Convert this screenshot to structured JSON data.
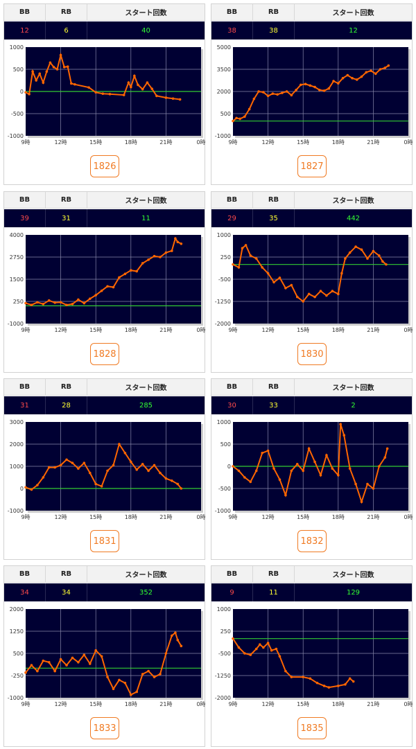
{
  "headers": {
    "bb": "BB",
    "rb": "RB",
    "start": "スタート回数"
  },
  "colors": {
    "bb": "#ff4a4a",
    "rb": "#ffff33",
    "start": "#33ff33",
    "line": "#ff6600",
    "baseline": "#33cc33",
    "plot_bg": "#000033",
    "button": "#f07a22"
  },
  "machines": [
    {
      "label": "1826",
      "bb": "12",
      "rb": "6",
      "start": "40"
    },
    {
      "label": "1827",
      "bb": "38",
      "rb": "38",
      "start": "12"
    },
    {
      "label": "1828",
      "bb": "39",
      "rb": "31",
      "start": "11"
    },
    {
      "label": "1830",
      "bb": "29",
      "rb": "35",
      "start": "442"
    },
    {
      "label": "1831",
      "bb": "31",
      "rb": "28",
      "start": "285"
    },
    {
      "label": "1832",
      "bb": "30",
      "rb": "33",
      "start": "2"
    },
    {
      "label": "1833",
      "bb": "34",
      "rb": "34",
      "start": "352"
    },
    {
      "label": "1835",
      "bb": "9",
      "rb": "11",
      "start": "129"
    }
  ],
  "chart_data": [
    {
      "type": "line",
      "x_ticks": [
        "9時",
        "12時",
        "15時",
        "18時",
        "21時",
        "0時"
      ],
      "xlim": [
        9,
        24
      ],
      "y_ticks": [
        "1000",
        "500",
        "0",
        "-500",
        "-1000"
      ],
      "ylim": [
        -1000,
        1000
      ],
      "baseline": 0,
      "x": [
        9.0,
        9.3,
        9.6,
        9.9,
        10.2,
        10.5,
        10.8,
        11.1,
        11.4,
        11.7,
        12.0,
        12.3,
        12.6,
        12.9,
        13.2,
        14.4,
        15.0,
        15.6,
        16.2,
        17.4,
        17.8,
        18.0,
        18.3,
        18.6,
        19.0,
        19.4,
        19.8,
        20.2,
        21.0,
        21.6,
        22.2
      ],
      "y": [
        -20,
        -60,
        450,
        250,
        400,
        200,
        450,
        650,
        550,
        500,
        820,
        550,
        560,
        180,
        160,
        90,
        -20,
        -50,
        -60,
        -80,
        200,
        100,
        350,
        150,
        50,
        200,
        60,
        -100,
        -140,
        -160,
        -180
      ]
    },
    {
      "type": "line",
      "x_ticks": [
        "9時",
        "12時",
        "15時",
        "18時",
        "21時",
        "0時"
      ],
      "xlim": [
        9,
        24
      ],
      "y_ticks": [
        "5000",
        "3500",
        "2000",
        "500",
        "-1000"
      ],
      "ylim": [
        -1000,
        5000
      ],
      "baseline": 0,
      "x": [
        9.0,
        9.3,
        9.6,
        10.0,
        10.4,
        10.8,
        11.2,
        11.6,
        12.0,
        12.4,
        12.8,
        13.2,
        13.6,
        14.0,
        14.4,
        14.8,
        15.2,
        15.6,
        16.0,
        16.4,
        16.8,
        17.2,
        17.6,
        18.0,
        18.4,
        18.8,
        19.2,
        19.6,
        20.0,
        20.4,
        20.8,
        21.2,
        21.6,
        22.0,
        22.3
      ],
      "y": [
        0,
        200,
        150,
        300,
        800,
        1500,
        2000,
        1950,
        1700,
        1850,
        1800,
        1900,
        2000,
        1750,
        2100,
        2450,
        2500,
        2400,
        2300,
        2100,
        2050,
        2200,
        2700,
        2550,
        2900,
        3100,
        2900,
        2800,
        3000,
        3300,
        3400,
        3200,
        3500,
        3600,
        3750
      ]
    },
    {
      "type": "line",
      "x_ticks": [
        "9時",
        "12時",
        "15時",
        "18時",
        "21時",
        "0時"
      ],
      "xlim": [
        9,
        24
      ],
      "y_ticks": [
        "4000",
        "2750",
        "1500",
        "250",
        "-1000"
      ],
      "ylim": [
        -1000,
        4000
      ],
      "baseline": 0,
      "x": [
        9.0,
        9.5,
        10.0,
        10.5,
        11.0,
        11.5,
        12.0,
        12.5,
        13.0,
        13.5,
        14.0,
        14.5,
        15.0,
        15.5,
        16.0,
        16.5,
        17.0,
        17.5,
        18.0,
        18.5,
        19.0,
        19.5,
        20.0,
        20.5,
        21.0,
        21.5,
        21.8,
        22.0,
        22.3
      ],
      "y": [
        150,
        50,
        200,
        100,
        300,
        180,
        200,
        50,
        100,
        350,
        150,
        400,
        600,
        850,
        1100,
        1050,
        1600,
        1800,
        2000,
        1950,
        2400,
        2600,
        2800,
        2750,
        3000,
        3100,
        3800,
        3600,
        3500
      ]
    },
    {
      "type": "line",
      "x_ticks": [
        "9時",
        "12時",
        "15時",
        "18時",
        "21時",
        "0時"
      ],
      "xlim": [
        9,
        24
      ],
      "y_ticks": [
        "1000",
        "250",
        "-500",
        "-1250",
        "-2000"
      ],
      "ylim": [
        -2000,
        1000
      ],
      "baseline": 0,
      "x": [
        9.0,
        9.5,
        9.8,
        10.1,
        10.5,
        11.0,
        11.5,
        12.0,
        12.5,
        13.0,
        13.5,
        14.0,
        14.5,
        15.0,
        15.5,
        16.0,
        16.5,
        17.0,
        17.5,
        18.0,
        18.3,
        18.6,
        19.0,
        19.5,
        20.0,
        20.5,
        21.0,
        21.5,
        21.8,
        22.1
      ],
      "y": [
        0,
        -100,
        550,
        650,
        300,
        200,
        -100,
        -300,
        -600,
        -450,
        -800,
        -700,
        -1100,
        -1250,
        -1000,
        -1100,
        -900,
        -1050,
        -900,
        -1000,
        -300,
        200,
        400,
        600,
        500,
        200,
        450,
        300,
        100,
        0
      ]
    },
    {
      "type": "line",
      "x_ticks": [
        "9時",
        "12時",
        "15時",
        "18時",
        "21時",
        "0時"
      ],
      "xlim": [
        9,
        24
      ],
      "y_ticks": [
        "3000",
        "2000",
        "1000",
        "0",
        "-1000"
      ],
      "ylim": [
        -1000,
        3000
      ],
      "baseline": 0,
      "x": [
        9.0,
        9.5,
        10.0,
        10.5,
        11.0,
        11.5,
        12.0,
        12.5,
        13.0,
        13.5,
        14.0,
        14.5,
        15.0,
        15.5,
        16.0,
        16.5,
        17.0,
        17.5,
        18.0,
        18.5,
        19.0,
        19.5,
        20.0,
        20.5,
        21.0,
        21.5,
        22.0,
        22.3
      ],
      "y": [
        50,
        -50,
        150,
        500,
        950,
        950,
        1050,
        1300,
        1150,
        900,
        1150,
        700,
        200,
        100,
        800,
        1050,
        2000,
        1600,
        1200,
        850,
        1100,
        800,
        1050,
        700,
        450,
        350,
        200,
        0
      ]
    },
    {
      "type": "line",
      "x_ticks": [
        "9時",
        "12時",
        "15時",
        "18時",
        "21時",
        "0時"
      ],
      "xlim": [
        9,
        24
      ],
      "y_ticks": [
        "1000",
        "500",
        "0",
        "-500",
        "-1000"
      ],
      "ylim": [
        -1000,
        1000
      ],
      "baseline": 0,
      "x": [
        9.0,
        9.5,
        10.0,
        10.5,
        11.0,
        11.5,
        12.0,
        12.5,
        13.0,
        13.5,
        14.0,
        14.5,
        15.0,
        15.5,
        16.0,
        16.5,
        17.0,
        17.5,
        18.0,
        18.2,
        18.5,
        19.0,
        19.5,
        20.0,
        20.5,
        21.0,
        21.5,
        22.0,
        22.2
      ],
      "y": [
        0,
        -100,
        -250,
        -350,
        -100,
        300,
        350,
        -50,
        -300,
        -650,
        -100,
        50,
        -100,
        400,
        100,
        -200,
        250,
        -50,
        -200,
        950,
        700,
        -50,
        -400,
        -800,
        -400,
        -500,
        0,
        200,
        400
      ]
    },
    {
      "type": "line",
      "x_ticks": [
        "9時",
        "12時",
        "15時",
        "18時",
        "21時",
        "0時"
      ],
      "xlim": [
        9,
        24
      ],
      "y_ticks": [
        "2000",
        "1250",
        "500",
        "-250",
        "-1000"
      ],
      "ylim": [
        -1000,
        2000
      ],
      "baseline": 0,
      "x": [
        9.0,
        9.5,
        10.0,
        10.5,
        11.0,
        11.5,
        12.0,
        12.5,
        13.0,
        13.5,
        14.0,
        14.5,
        15.0,
        15.5,
        16.0,
        16.5,
        17.0,
        17.5,
        18.0,
        18.5,
        19.0,
        19.5,
        20.0,
        20.5,
        21.0,
        21.5,
        21.8,
        22.0,
        22.3
      ],
      "y": [
        -150,
        100,
        -100,
        250,
        200,
        -100,
        300,
        100,
        350,
        200,
        450,
        150,
        600,
        400,
        -300,
        -700,
        -400,
        -500,
        -900,
        -800,
        -200,
        -100,
        -300,
        -200,
        500,
        1100,
        1200,
        950,
        750
      ]
    },
    {
      "type": "line",
      "x_ticks": [
        "9時",
        "12時",
        "15時",
        "18時",
        "21時",
        "0時"
      ],
      "xlim": [
        9,
        24
      ],
      "y_ticks": [
        "1000",
        "250",
        "-500",
        "-1250",
        "-2000"
      ],
      "ylim": [
        -2000,
        1000
      ],
      "baseline": 0,
      "x": [
        9.0,
        9.5,
        10.0,
        10.5,
        11.0,
        11.3,
        11.6,
        12.0,
        12.3,
        12.7,
        13.0,
        13.5,
        14.0,
        15.0,
        15.6,
        16.2,
        16.8,
        17.2,
        18.0,
        18.6,
        19.0,
        19.3
      ],
      "y": [
        0,
        -300,
        -500,
        -550,
        -350,
        -200,
        -300,
        -150,
        -400,
        -350,
        -600,
        -1100,
        -1300,
        -1300,
        -1350,
        -1500,
        -1600,
        -1650,
        -1600,
        -1550,
        -1350,
        -1450
      ]
    }
  ]
}
